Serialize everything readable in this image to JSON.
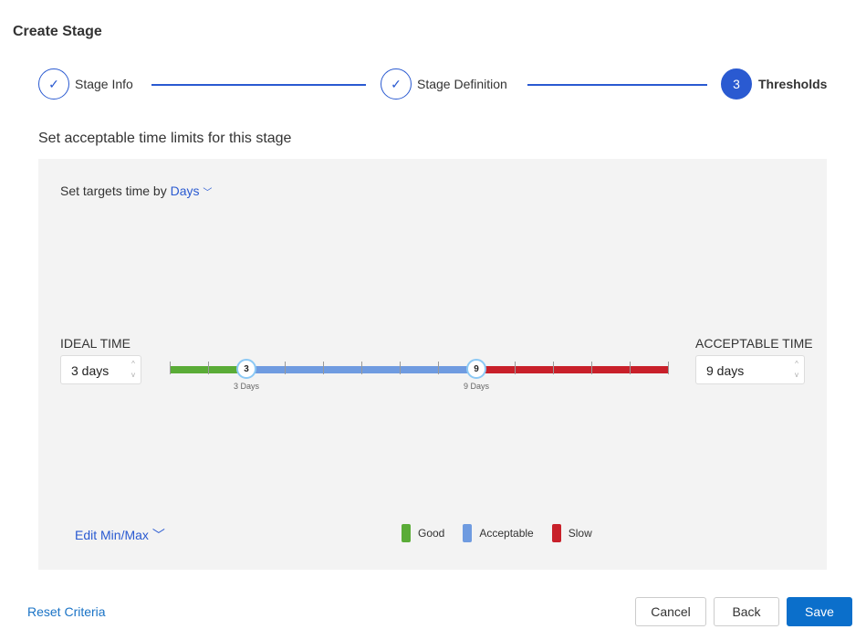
{
  "title": "Create Stage",
  "steps": [
    {
      "label": "Stage Info",
      "state": "done"
    },
    {
      "label": "Stage Definition",
      "state": "done"
    },
    {
      "label": "Thresholds",
      "state": "active",
      "number": "3"
    }
  ],
  "subtitle": "Set acceptable time limits for this stage",
  "target": {
    "label": "Set targets time by",
    "unit": "Days"
  },
  "ideal": {
    "label": "IDEAL TIME",
    "value": "3 days"
  },
  "acceptable": {
    "label": "ACCEPTABLE TIME",
    "value": "9 days"
  },
  "slider": {
    "min": 1,
    "max": 14,
    "ideal": 3,
    "acceptable": 9,
    "ideal_knob": "3",
    "acceptable_knob": "9",
    "ideal_caption": "3 Days",
    "acceptable_caption": "9 Days"
  },
  "edit_minmax": "Edit Min/Max",
  "legend": [
    {
      "label": "Good",
      "color": "#5aac37"
    },
    {
      "label": "Acceptable",
      "color": "#6f9be0"
    },
    {
      "label": "Slow",
      "color": "#c8202a"
    }
  ],
  "footer": {
    "reset": "Reset Criteria",
    "cancel": "Cancel",
    "back": "Back",
    "save": "Save"
  }
}
